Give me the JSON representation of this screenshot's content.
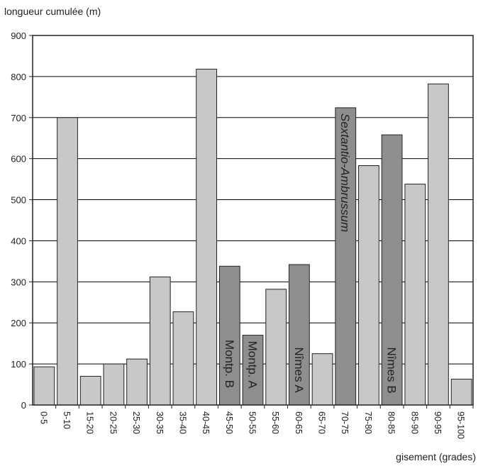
{
  "chart_data": {
    "type": "bar",
    "ylabel": "longueur cumulée (m)",
    "xlabel": "gisement (grades)",
    "ylim": [
      0,
      900
    ],
    "yticks": [
      0,
      100,
      200,
      300,
      400,
      500,
      600,
      700,
      800,
      900
    ],
    "grid": true,
    "categories": [
      "0-5",
      "5-10",
      "15-20",
      "20-25",
      "25-30",
      "30-35",
      "35-40",
      "40-45",
      "45-50",
      "50-55",
      "55-60",
      "60-65",
      "65-70",
      "70-75",
      "75-80",
      "80-85",
      "85-90",
      "90-95",
      "95-100"
    ],
    "values": [
      93,
      700,
      70,
      100,
      112,
      312,
      227,
      818,
      338,
      170,
      282,
      342,
      125,
      724,
      583,
      658,
      538,
      782,
      63
    ],
    "highlighted": [
      false,
      false,
      false,
      false,
      false,
      false,
      false,
      false,
      true,
      true,
      false,
      true,
      false,
      true,
      false,
      true,
      false,
      false,
      false
    ],
    "bar_labels": {
      "45-50": "Montp. B",
      "50-55": "Montp. A",
      "60-65": "Nîmes A",
      "70-75": "Sextantio-Ambrussum",
      "80-85": "Nîmes B"
    },
    "italic_labels": [
      "70-75"
    ],
    "colors": {
      "normal": "#c8c8c8",
      "highlight": "#8e8e8e",
      "stroke": "#222222",
      "grid": "#000000"
    }
  }
}
